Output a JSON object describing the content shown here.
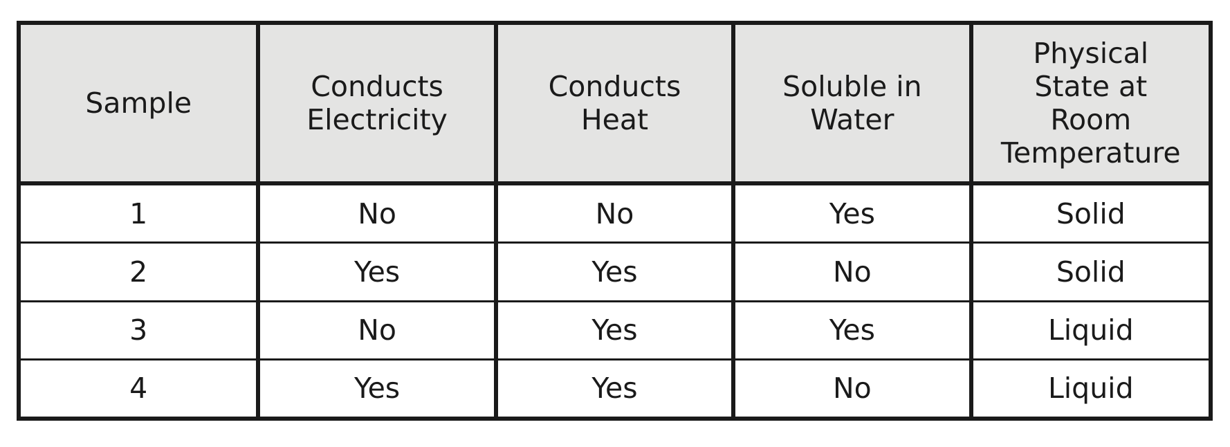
{
  "table": {
    "headers": [
      {
        "lines": [
          "Sample"
        ]
      },
      {
        "lines": [
          "Conducts",
          "Electricity"
        ]
      },
      {
        "lines": [
          "Conducts",
          "Heat"
        ]
      },
      {
        "lines": [
          "Soluble in",
          "Water"
        ]
      },
      {
        "lines": [
          "Physical",
          "State at",
          "Room",
          "Temperature"
        ]
      }
    ],
    "rows": [
      [
        "1",
        "No",
        "No",
        "Yes",
        "Solid"
      ],
      [
        "2",
        "Yes",
        "Yes",
        "No",
        "Solid"
      ],
      [
        "3",
        "No",
        "Yes",
        "Yes",
        "Liquid"
      ],
      [
        "4",
        "Yes",
        "Yes",
        "No",
        "Liquid"
      ]
    ]
  }
}
